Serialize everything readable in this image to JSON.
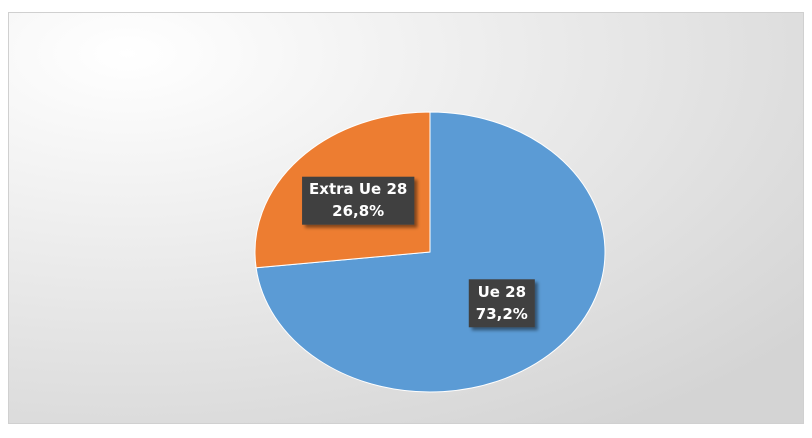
{
  "chart_data": {
    "type": "pie",
    "categories": [
      "Ue 28",
      "Extra Ue 28"
    ],
    "values": [
      73.2,
      26.8
    ],
    "value_labels": [
      "73,2%",
      "26,8%"
    ],
    "colors": [
      "#5b9bd5",
      "#ed7d31"
    ]
  }
}
